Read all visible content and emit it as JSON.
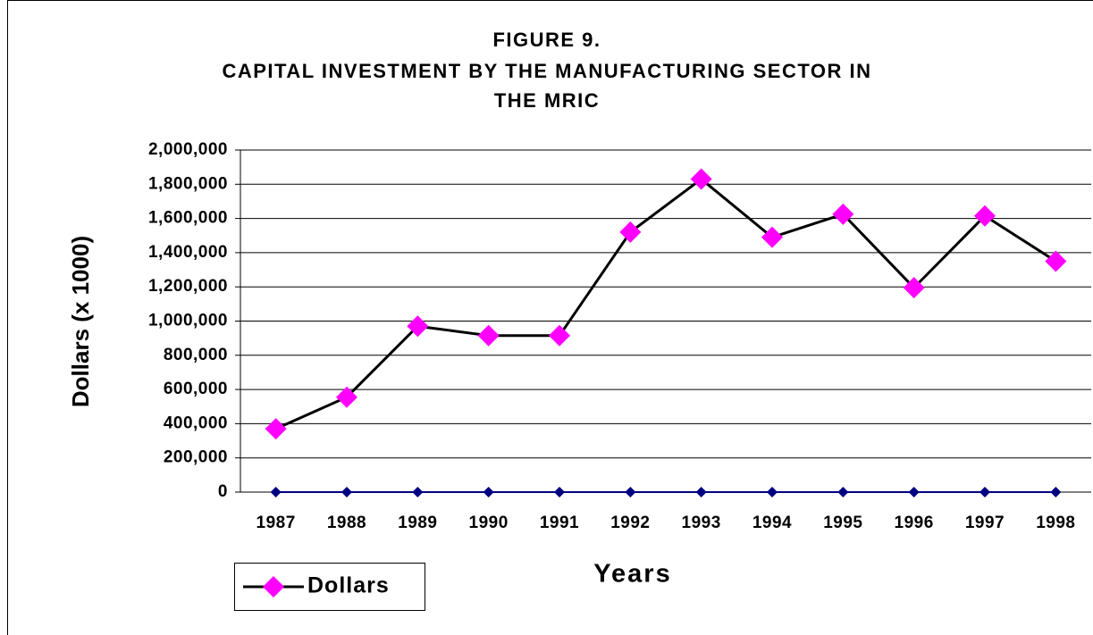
{
  "chart_data": {
    "type": "line",
    "title": [
      "FIGURE 9.",
      "CAPITAL INVESTMENT BY THE MANUFACTURING SECTOR IN",
      "THE MRIC"
    ],
    "y_label": "Dollars (x 1000)",
    "x_label": "Years",
    "categories": [
      "1987",
      "1988",
      "1989",
      "1990",
      "1991",
      "1992",
      "1993",
      "1994",
      "1995",
      "1996",
      "1997",
      "1998"
    ],
    "series": [
      {
        "name": "Dollars",
        "color": "#000000",
        "marker_color": "#ff00ff",
        "values": [
          370000,
          555000,
          970000,
          915000,
          915000,
          1520000,
          1830000,
          1490000,
          1625000,
          1195000,
          1615000,
          1350000
        ]
      },
      {
        "color": "#000080",
        "marker_color": "#000080",
        "values": [
          0,
          0,
          0,
          0,
          0,
          0,
          0,
          0,
          0,
          0,
          0,
          0
        ]
      }
    ],
    "ylim": [
      0,
      2000000
    ],
    "yticks": [
      0,
      {
        "value": 200000,
        "label": "200,000"
      },
      {
        "value": 400000,
        "label": "400,000"
      },
      {
        "value": 600000,
        "label": "600,000"
      },
      {
        "value": 800000,
        "label": "800,000"
      },
      {
        "value": 1000000,
        "label": "1,000,000"
      },
      {
        "value": 1200000,
        "label": "1,200,000"
      },
      {
        "value": 1400000,
        "label": "1,400,000"
      },
      {
        "value": 1600000,
        "label": "1,600,000"
      },
      {
        "value": 1800000,
        "label": "1,800,000"
      },
      {
        "value": 2000000,
        "label": "2,000,000"
      }
    ],
    "grid": true,
    "legend": "bottom-left"
  }
}
